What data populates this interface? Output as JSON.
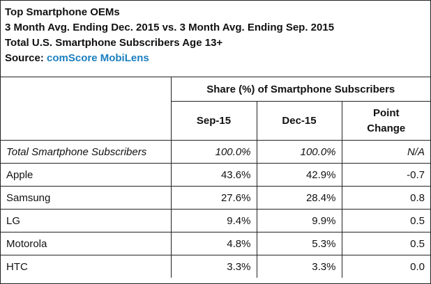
{
  "header": {
    "line1": "Top Smartphone OEMs",
    "line2": "3 Month Avg. Ending Dec. 2015 vs. 3 Month Avg. Ending Sep. 2015",
    "line3": "Total U.S. Smartphone Subscribers Age 13+",
    "source_label": "Source: ",
    "source_name": "comScore MobiLens",
    "source_color": "#1a7fbf"
  },
  "table": {
    "group_header": "Share (%) of Smartphone Subscribers",
    "columns": [
      "Sep-15",
      "Dec-15",
      "Point Change"
    ],
    "rows": [
      {
        "label": "Total Smartphone Subscribers",
        "sep": "100.0%",
        "dec": "100.0%",
        "change": "N/A"
      },
      {
        "label": "Apple",
        "sep": "43.6%",
        "dec": "42.9%",
        "change": "-0.7"
      },
      {
        "label": "Samsung",
        "sep": "27.6%",
        "dec": "28.4%",
        "change": "0.8"
      },
      {
        "label": "LG",
        "sep": "9.4%",
        "dec": "9.9%",
        "change": "0.5"
      },
      {
        "label": "Motorola",
        "sep": "4.8%",
        "dec": "5.3%",
        "change": "0.5"
      },
      {
        "label": "HTC",
        "sep": "3.3%",
        "dec": "3.3%",
        "change": "0.0"
      }
    ]
  },
  "chart_data": {
    "type": "table",
    "title": "Top Smartphone OEMs",
    "columns": [
      "",
      "Sep-15",
      "Dec-15",
      "Point Change"
    ],
    "rows": [
      [
        "Total Smartphone Subscribers",
        "100.0%",
        "100.0%",
        "N/A"
      ],
      [
        "Apple",
        "43.6%",
        "42.9%",
        "-0.7"
      ],
      [
        "Samsung",
        "27.6%",
        "28.4%",
        "0.8"
      ],
      [
        "LG",
        "9.4%",
        "9.9%",
        "0.5"
      ],
      [
        "Motorola",
        "4.8%",
        "5.3%",
        "0.5"
      ],
      [
        "HTC",
        "3.3%",
        "3.3%",
        "0.0"
      ]
    ]
  }
}
